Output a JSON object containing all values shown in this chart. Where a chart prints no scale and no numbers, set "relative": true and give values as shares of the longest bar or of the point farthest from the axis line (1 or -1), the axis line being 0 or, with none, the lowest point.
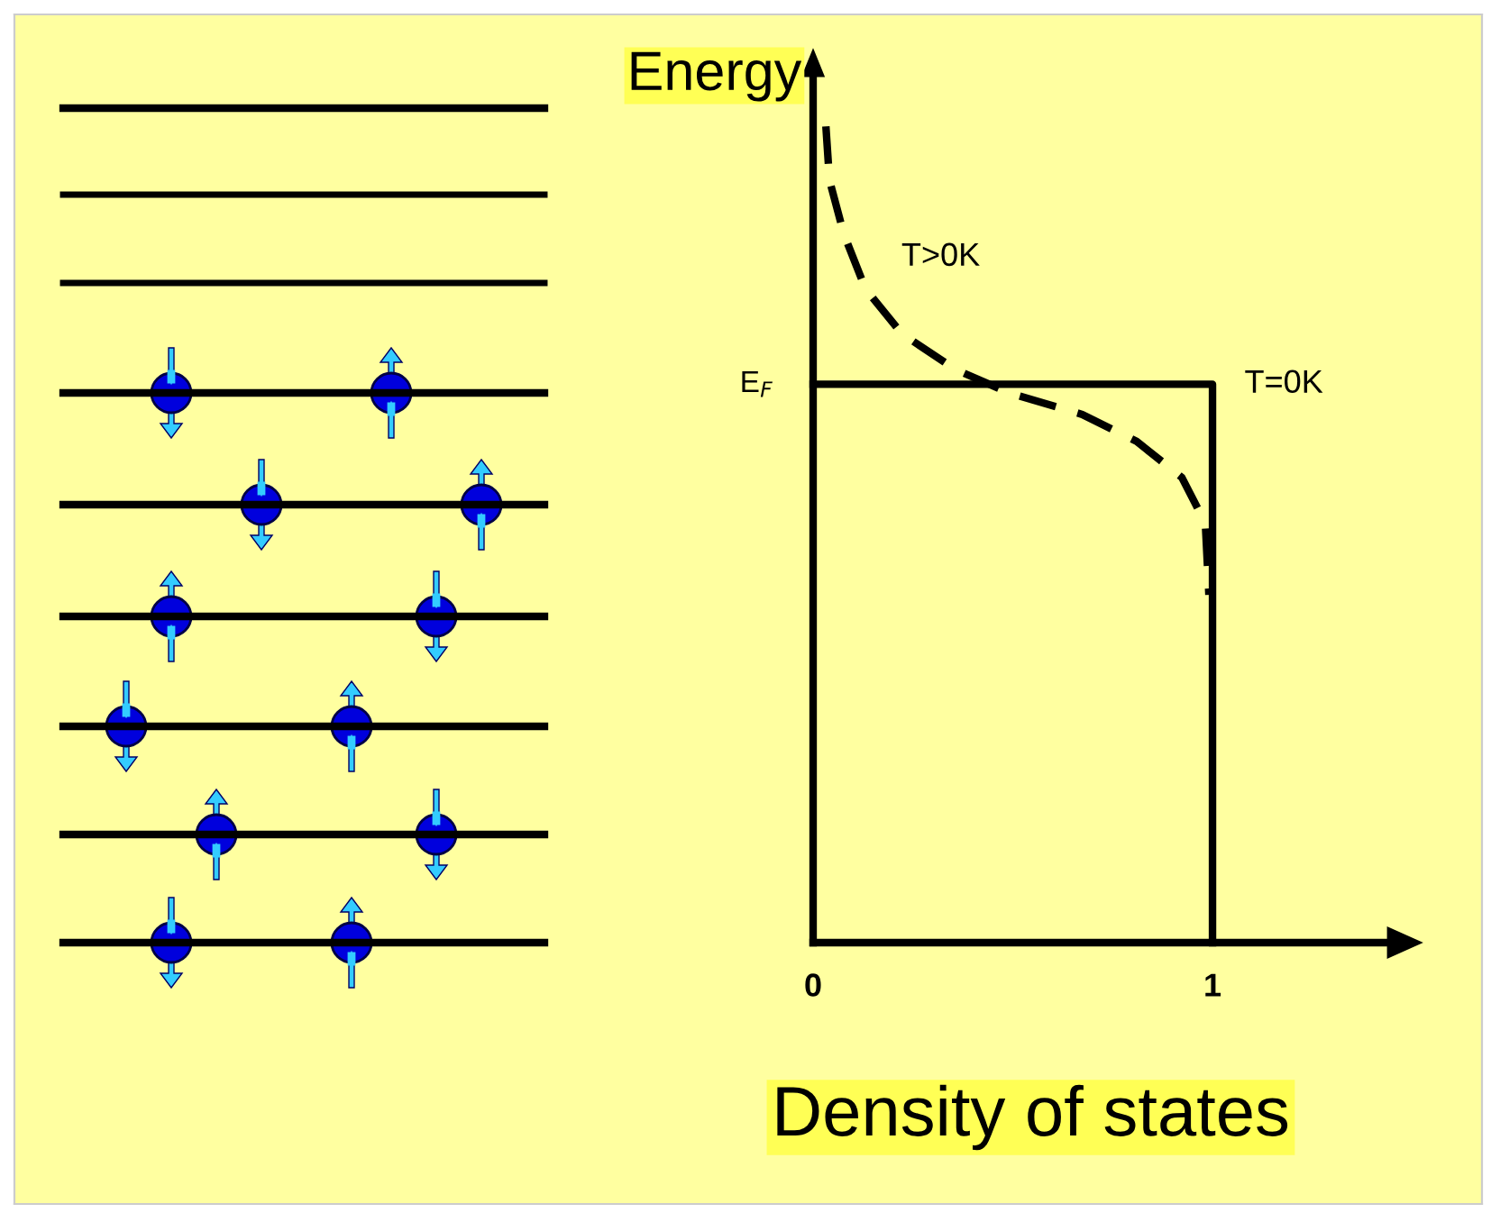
{
  "chart_data": {
    "type": "line",
    "relative": true,
    "ylabel": "Energy",
    "xlabel": "Density of states",
    "xlim": [
      0,
      1.44
    ],
    "xticks": [
      0,
      1
    ],
    "legend": false,
    "grid": false,
    "marker": "none",
    "annotations": [
      {
        "text": "E$_{F}$",
        "x": 0,
        "y": 0.684
      }
    ],
    "series": [
      {
        "name": "T=0K",
        "color": "#000000",
        "line_style": "solid",
        "x": [
          0,
          1,
          1
        ],
        "values": [
          0.684,
          0.684,
          0
        ]
      },
      {
        "name": "T>0K",
        "color": "#000000",
        "line_style": "dashed",
        "x": [
          0.032,
          0.041,
          0.077,
          0.131,
          0.222,
          0.357,
          0.493,
          0.674,
          0.81,
          0.923,
          0.982,
          0.991
        ],
        "values": [
          1.0,
          0.934,
          0.868,
          0.801,
          0.746,
          0.702,
          0.673,
          0.647,
          0.614,
          0.57,
          0.514,
          0.426
        ]
      }
    ]
  }
}
